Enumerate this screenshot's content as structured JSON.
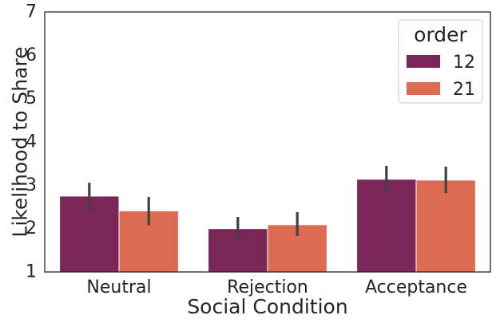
{
  "chart_data": {
    "type": "bar",
    "xlabel": "Social Condition",
    "ylabel": "Likelihood to Share",
    "ylim": [
      1,
      7
    ],
    "yticks": [
      "1",
      "2",
      "3",
      "4",
      "5",
      "6",
      "7"
    ],
    "grid": false,
    "categories": [
      "Neutral",
      "Rejection",
      "Acceptance"
    ],
    "legend": {
      "title": "order",
      "placement": "top-right"
    },
    "series": [
      {
        "name": "12",
        "color": "#7a2656",
        "values": [
          2.75,
          2.0,
          3.14
        ],
        "ci_low": [
          2.42,
          1.74,
          2.86
        ],
        "ci_high": [
          3.06,
          2.27,
          3.45
        ]
      },
      {
        "name": "21",
        "color": "#dd6b52",
        "values": [
          2.41,
          2.09,
          3.12
        ],
        "ci_low": [
          2.08,
          1.83,
          2.82
        ],
        "ci_high": [
          2.73,
          2.38,
          3.43
        ]
      }
    ],
    "errorbar_color": "#404040"
  }
}
